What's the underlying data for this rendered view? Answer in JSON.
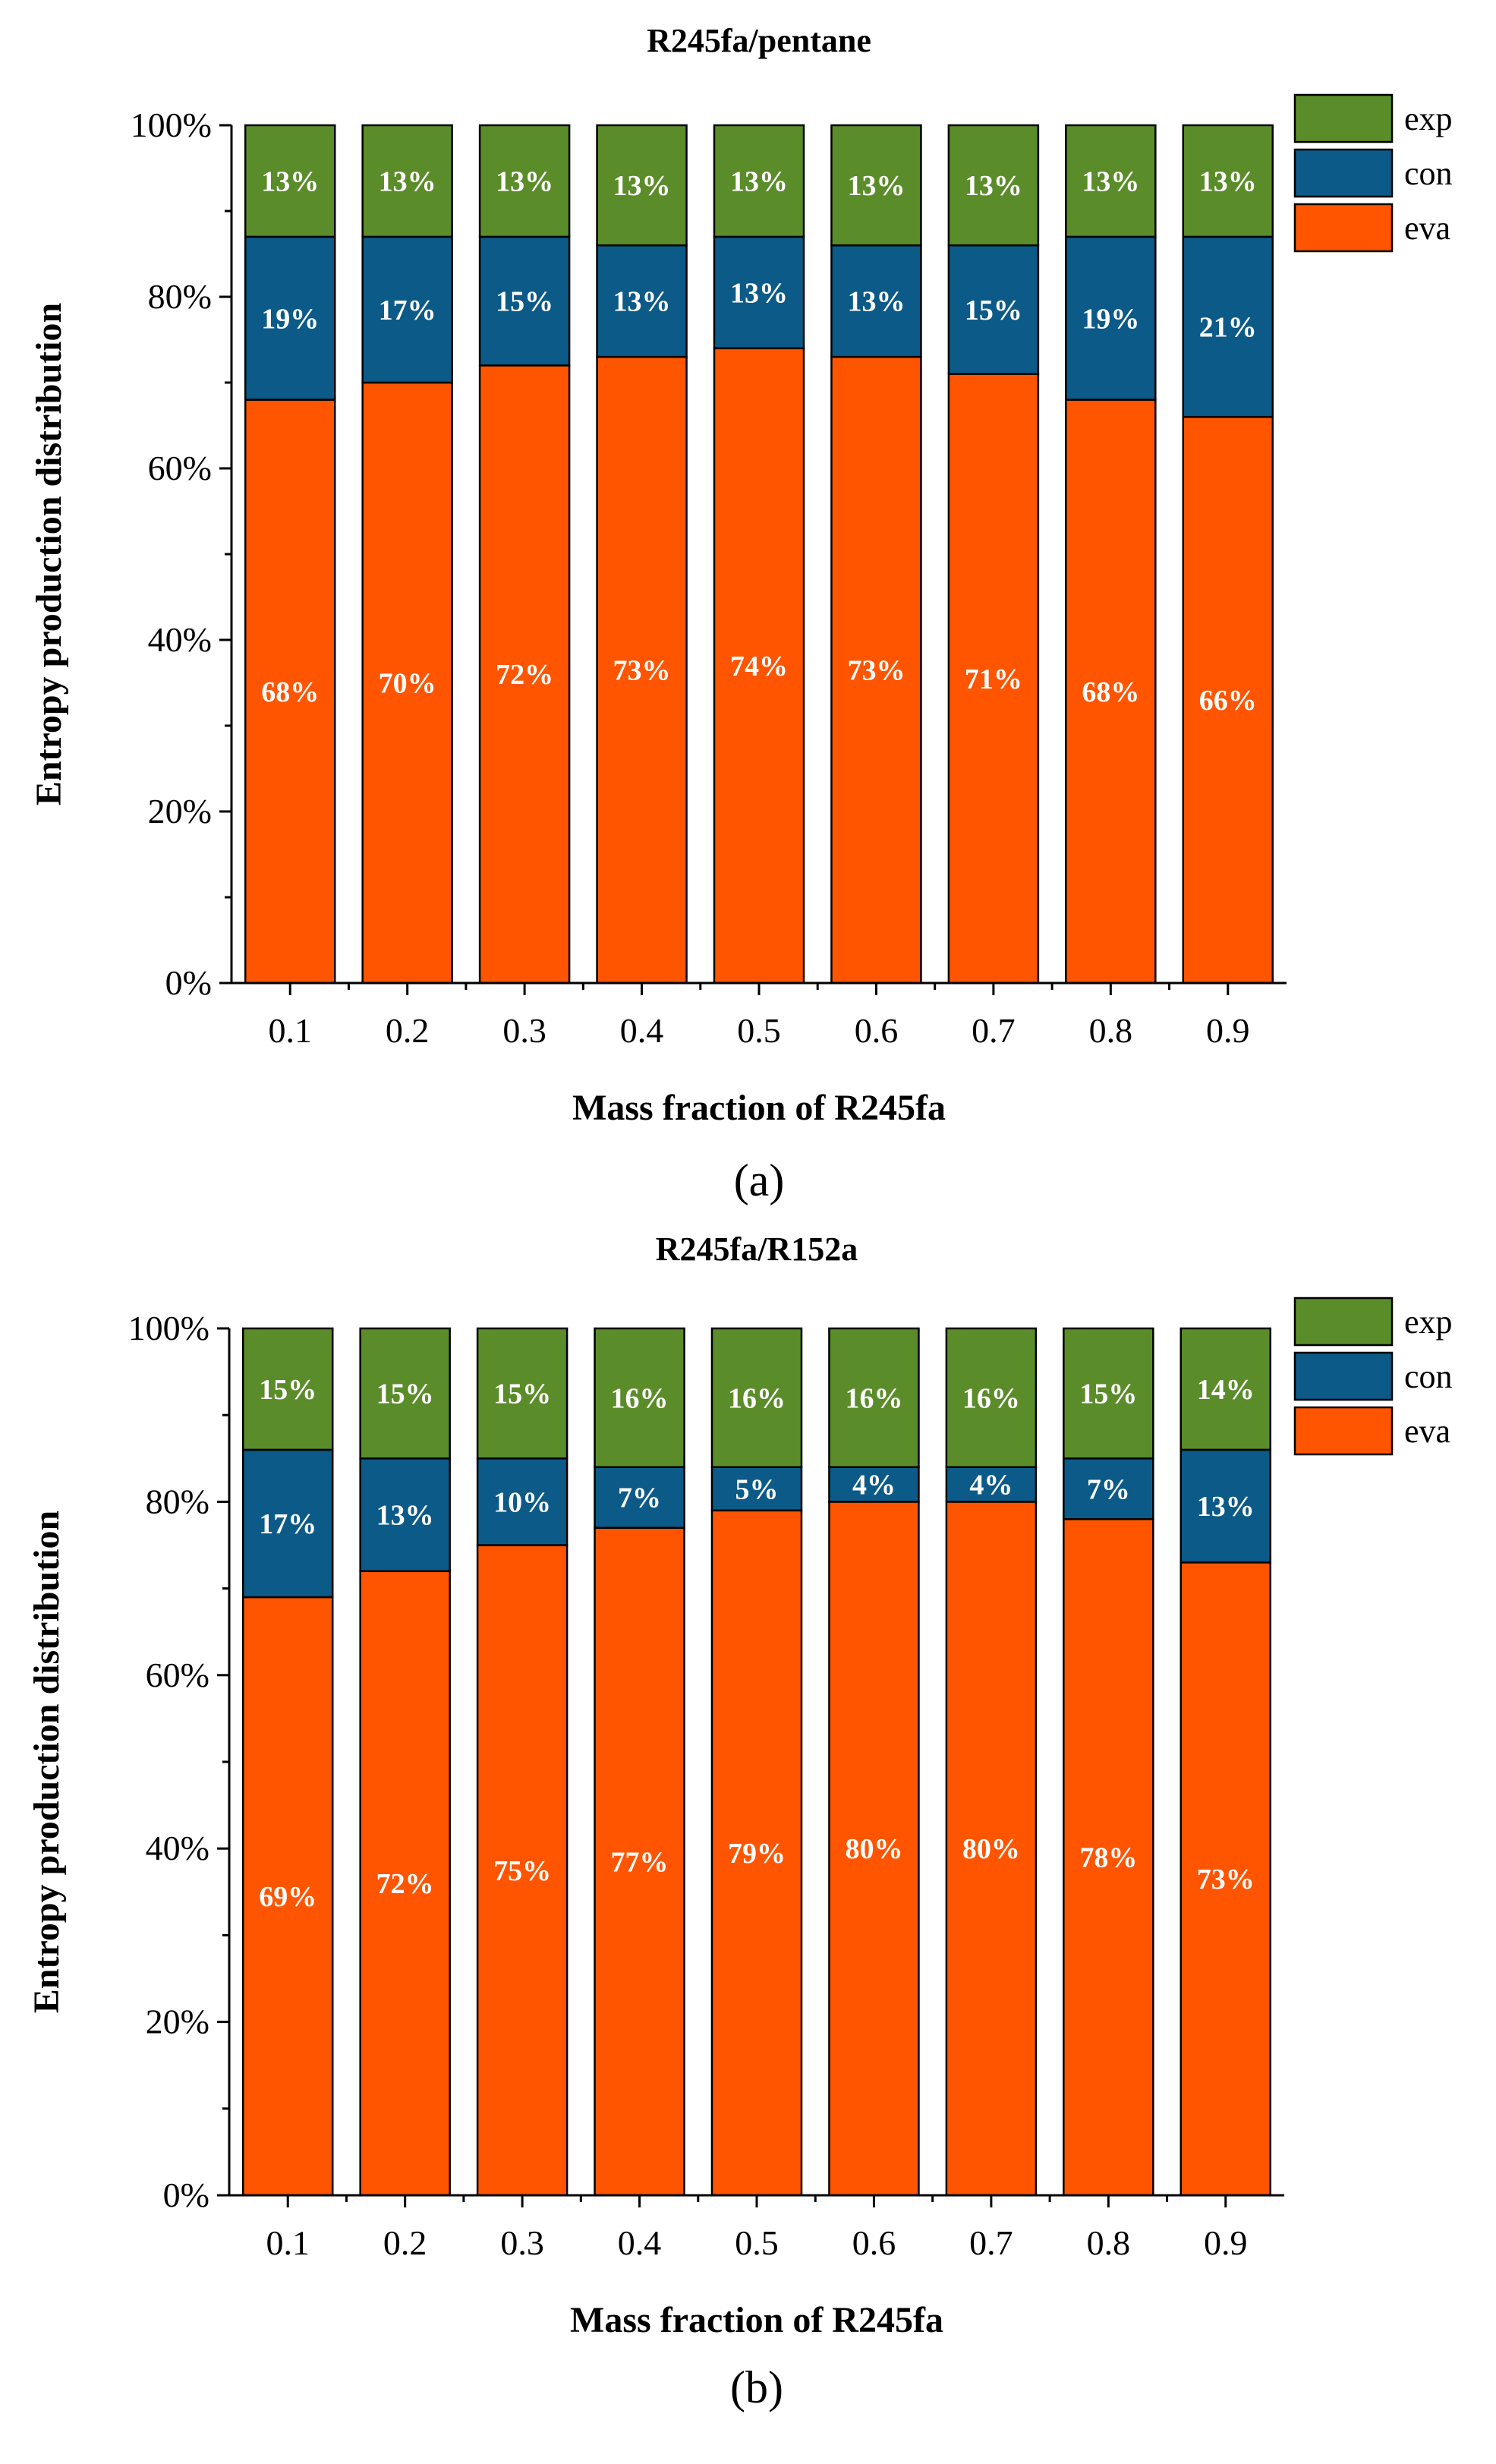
{
  "colors": {
    "eva": "#ff5500",
    "con": "#0c5a88",
    "exp": "#5b8c2a",
    "label_eva": "#ffffff",
    "label_con": "#ffffff",
    "label_exp": "#ffffff"
  },
  "chart_data": [
    {
      "type": "bar",
      "stacked": true,
      "title": "R245fa/pentane",
      "panel_label": "(a)",
      "xlabel": "Mass fraction of R245fa",
      "ylabel": "Entropy production distribution",
      "ylim": [
        0,
        100
      ],
      "yticks": [
        "0%",
        "20%",
        "40%",
        "60%",
        "80%",
        "100%"
      ],
      "categories": [
        "0.1",
        "0.2",
        "0.3",
        "0.4",
        "0.5",
        "0.6",
        "0.7",
        "0.8",
        "0.9"
      ],
      "legend_position": "top-right",
      "series": [
        {
          "name": "eva",
          "values": [
            68,
            70,
            72,
            73,
            74,
            73,
            71,
            68,
            66
          ],
          "labels": [
            "68%",
            "70%",
            "72%",
            "73%",
            "74%",
            "73%",
            "71%",
            "68%",
            "66%"
          ]
        },
        {
          "name": "con",
          "values": [
            19,
            17,
            15,
            13,
            13,
            13,
            15,
            19,
            21
          ],
          "labels": [
            "19%",
            "17%",
            "15%",
            "13%",
            "13%",
            "13%",
            "15%",
            "19%",
            "21%"
          ]
        },
        {
          "name": "exp",
          "values": [
            13,
            13,
            13,
            13,
            13,
            13,
            13,
            13,
            13
          ],
          "labels": [
            "13%",
            "13%",
            "13%",
            "13%",
            "13%",
            "13%",
            "13%",
            "13%",
            "13%"
          ]
        }
      ],
      "legend_order": [
        "exp",
        "con",
        "eva"
      ]
    },
    {
      "type": "bar",
      "stacked": true,
      "title": "R245fa/R152a",
      "panel_label": "(b)",
      "xlabel": "Mass fraction of R245fa",
      "ylabel": "Entropy production distribution",
      "ylim": [
        0,
        100
      ],
      "yticks": [
        "0%",
        "20%",
        "40%",
        "60%",
        "80%",
        "100%"
      ],
      "categories": [
        "0.1",
        "0.2",
        "0.3",
        "0.4",
        "0.5",
        "0.6",
        "0.7",
        "0.8",
        "0.9"
      ],
      "legend_position": "top-right",
      "series": [
        {
          "name": "eva",
          "values": [
            69,
            72,
            75,
            77,
            79,
            80,
            80,
            78,
            73
          ],
          "labels": [
            "69%",
            "72%",
            "75%",
            "77%",
            "79%",
            "80%",
            "80%",
            "78%",
            "73%"
          ]
        },
        {
          "name": "con",
          "values": [
            17,
            13,
            10,
            7,
            5,
            4,
            4,
            7,
            13
          ],
          "labels": [
            "17%",
            "13%",
            "10%",
            "7%",
            "5%",
            "4%",
            "4%",
            "7%",
            "13%"
          ]
        },
        {
          "name": "exp",
          "values": [
            15,
            15,
            15,
            16,
            16,
            16,
            16,
            15,
            14
          ],
          "labels": [
            "15%",
            "15%",
            "15%",
            "16%",
            "16%",
            "16%",
            "16%",
            "15%",
            "14%"
          ]
        }
      ],
      "legend_order": [
        "exp",
        "con",
        "eva"
      ]
    }
  ]
}
